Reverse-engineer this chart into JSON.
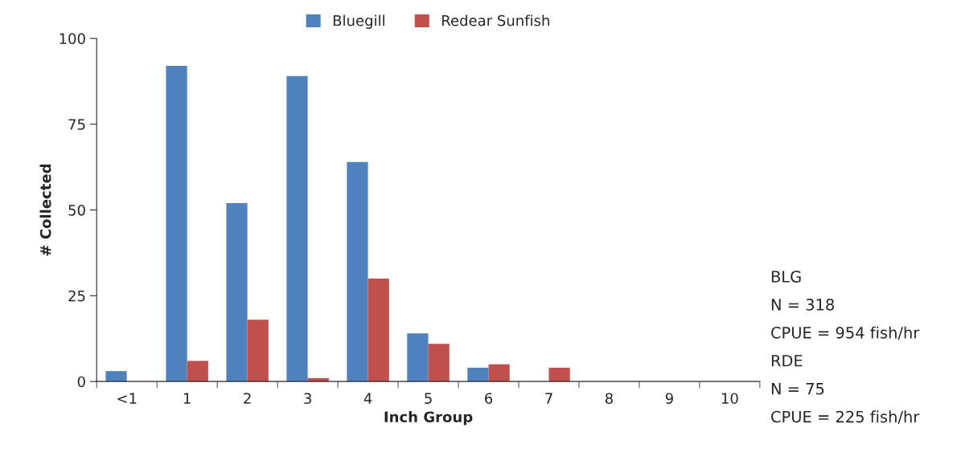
{
  "chart_data": {
    "type": "bar",
    "xlabel": "Inch Group",
    "ylabel": "# Collected",
    "categories": [
      "<1",
      "1",
      "2",
      "3",
      "4",
      "5",
      "6",
      "7",
      "8",
      "9",
      "10"
    ],
    "series": [
      {
        "name": "Bluegill",
        "color": "#4f81bd",
        "values": [
          3,
          92,
          52,
          89,
          64,
          14,
          4,
          null,
          null,
          null,
          null
        ]
      },
      {
        "name": "Redear Sunfish",
        "color": "#c0504d",
        "values": [
          null,
          6,
          18,
          1,
          30,
          11,
          5,
          4,
          null,
          null,
          null
        ]
      }
    ],
    "ylim": [
      0,
      100
    ],
    "yticks": [
      0,
      25,
      50,
      75,
      100
    ],
    "grid": false,
    "legend": "top",
    "annotations": [
      "BLG",
      "N = 318",
      "CPUE = 954 fish/hr",
      "RDE",
      "N = 75",
      "CPUE = 225 fish/hr"
    ]
  }
}
